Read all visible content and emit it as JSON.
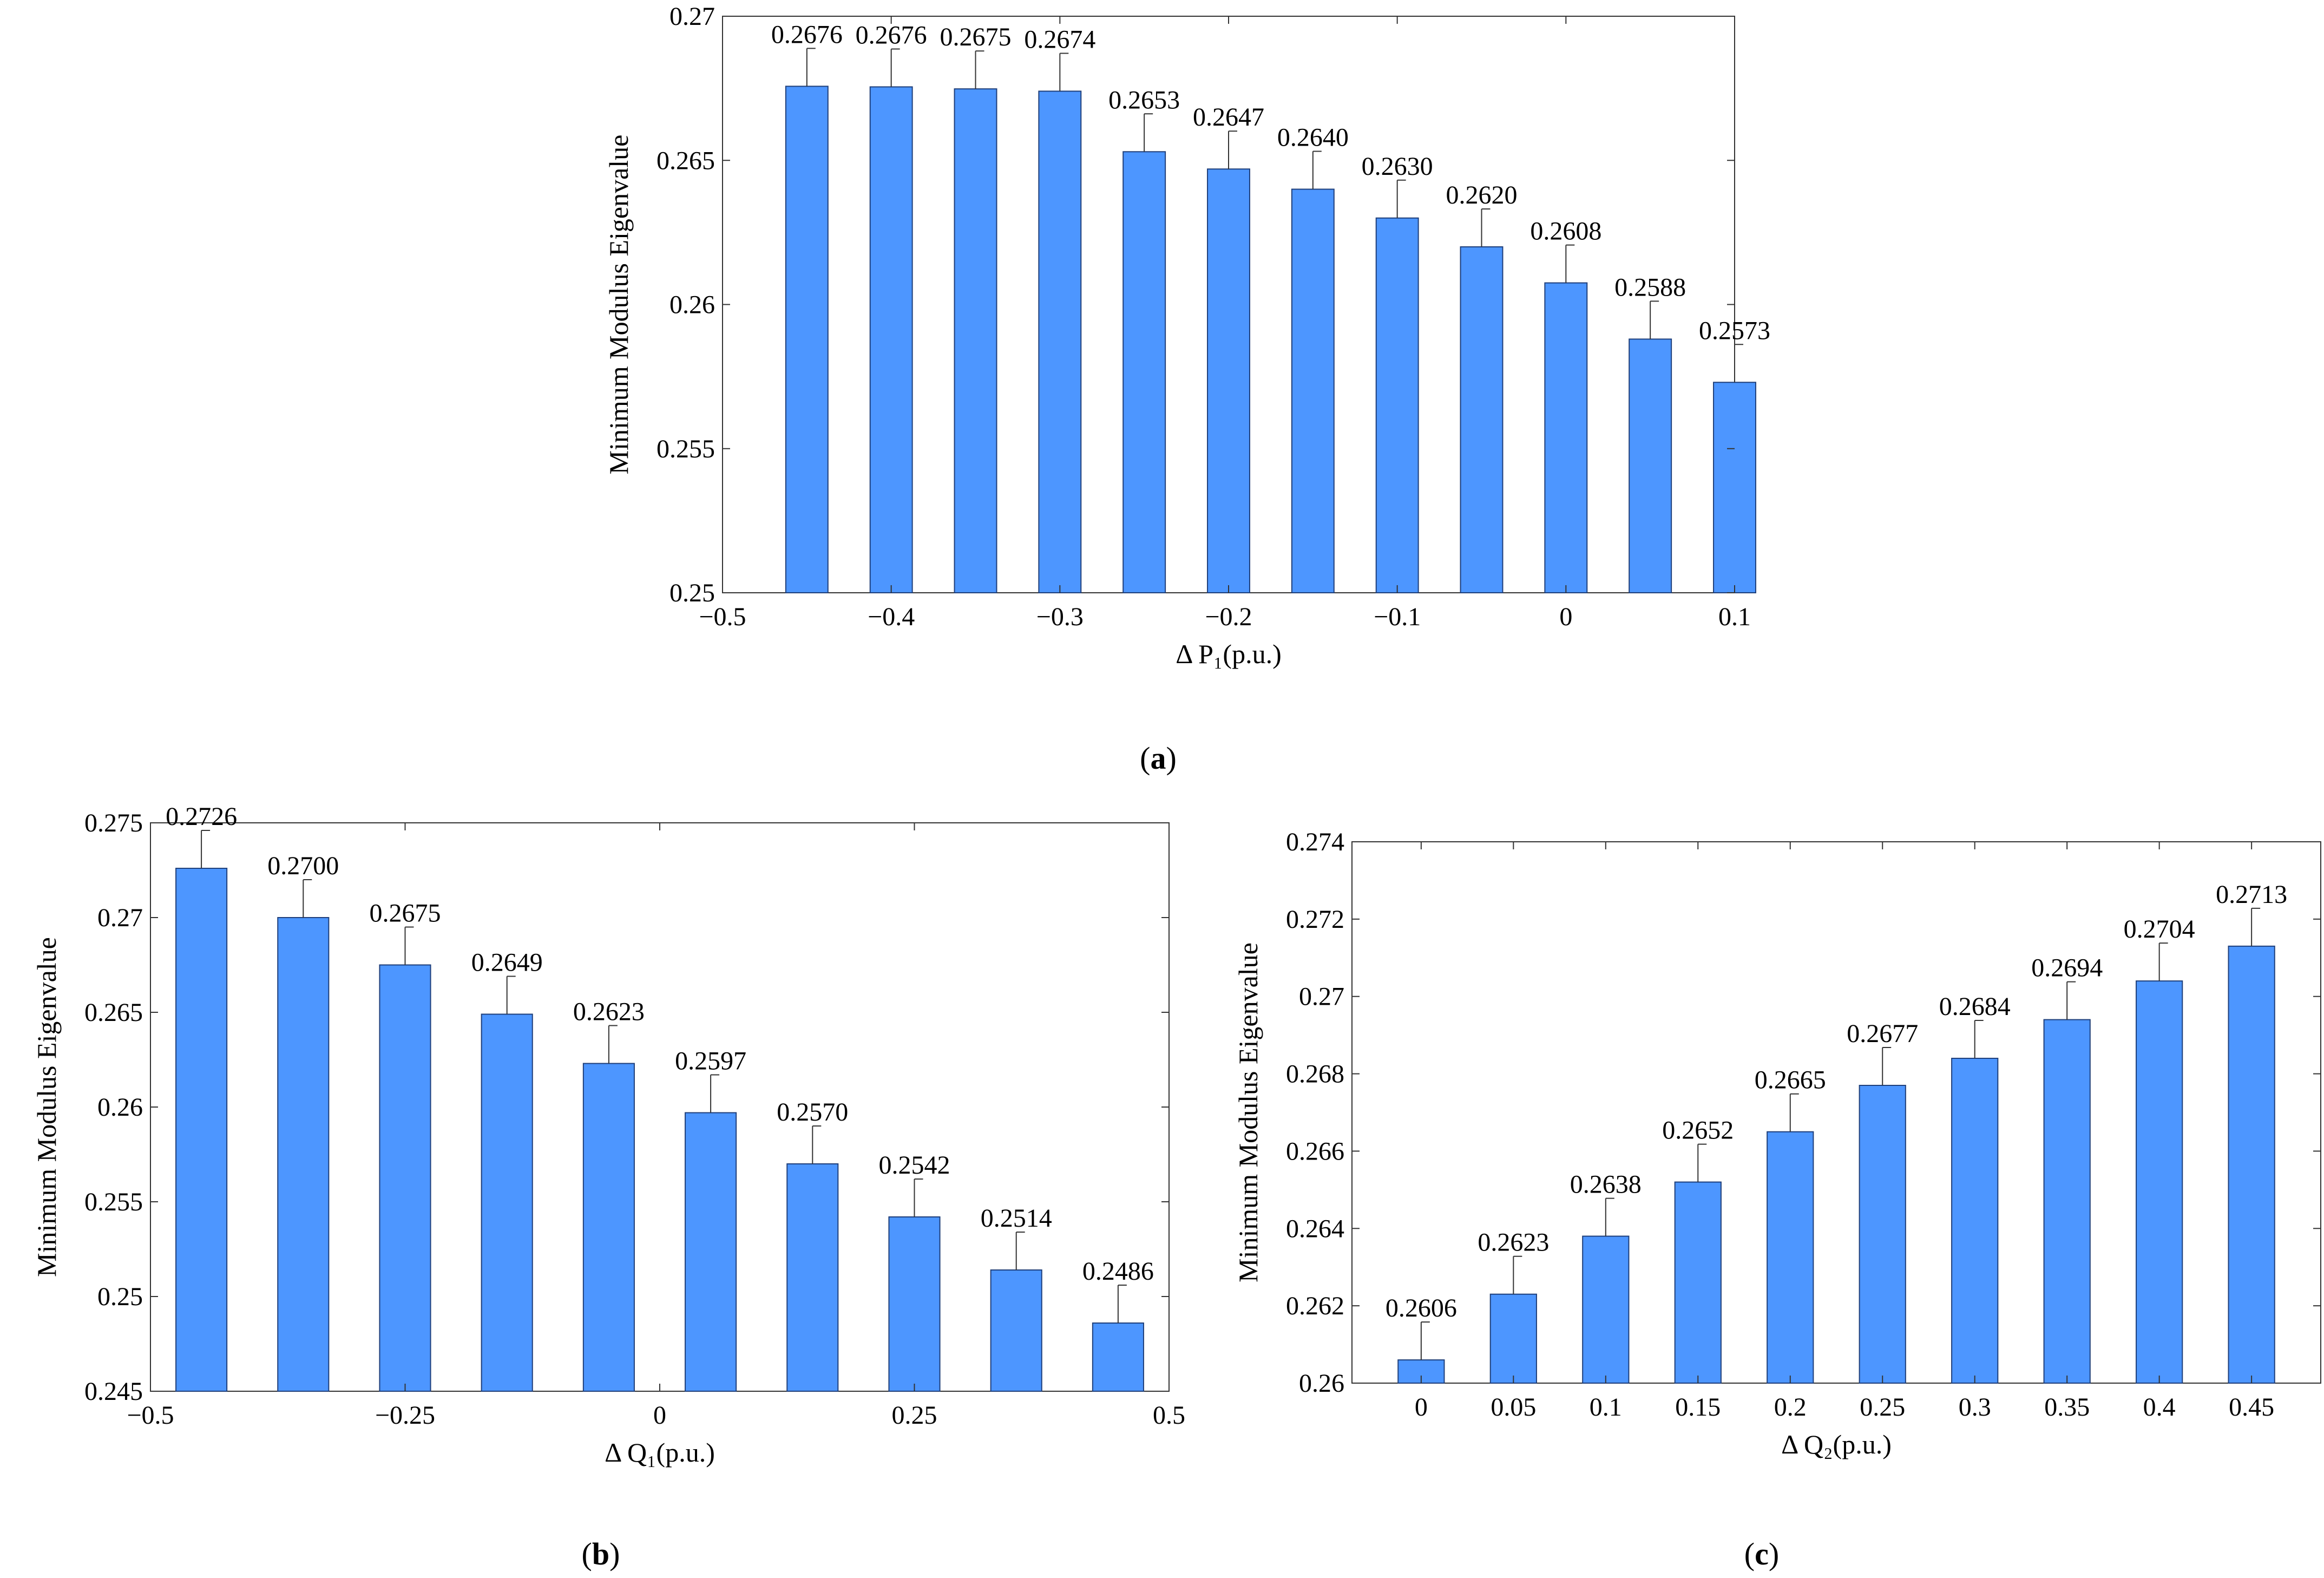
{
  "colors": {
    "bar_fill": "#4d96ff",
    "bar_stroke": "#1f3f7a",
    "axis": "#333333"
  },
  "chart_data": [
    {
      "id": "a",
      "type": "bar",
      "caption_letter": "a",
      "title": "",
      "xlabel": "Δ P₁(p.u.)",
      "ylabel": "Minimum Modulus Eigenvalue",
      "xlim": [
        -0.5,
        0.1
      ],
      "ylim": [
        0.25,
        0.27
      ],
      "x_ticks": [
        -0.5,
        -0.4,
        -0.3,
        -0.2,
        -0.1,
        0,
        0.1
      ],
      "x_tick_labels": [
        "−0.5",
        "−0.4",
        "−0.3",
        "−0.2",
        "−0.1",
        "0",
        "0.1"
      ],
      "y_ticks": [
        0.25,
        0.255,
        0.26,
        0.265,
        0.27
      ],
      "y_tick_labels": [
        "0.25",
        "0.255",
        "0.26",
        "0.265",
        "0.27"
      ],
      "x": [
        -0.45,
        -0.4,
        -0.35,
        -0.3,
        -0.25,
        -0.2,
        -0.15,
        -0.1,
        -0.05,
        0.0,
        0.05,
        0.1
      ],
      "values": [
        0.26757,
        0.26755,
        0.26748,
        0.2674,
        0.2653,
        0.2647,
        0.264,
        0.263,
        0.262,
        0.26075,
        0.2588,
        0.2573
      ],
      "value_labels": [
        "0.2676",
        "0.2676",
        "0.2675",
        "0.2674",
        "0.2653",
        "0.2647",
        "0.2640",
        "0.2630",
        "0.2620",
        "0.2608",
        "0.2588",
        "0.2573"
      ],
      "bar_width": 0.025,
      "grid": false
    },
    {
      "id": "b",
      "type": "bar",
      "caption_letter": "b",
      "title": "",
      "xlabel": "Δ Q₁(p.u.)",
      "ylabel": "Minimum Modulus Eigenvalue",
      "xlim": [
        -0.5,
        0.5
      ],
      "ylim": [
        0.245,
        0.275
      ],
      "x_ticks": [
        -0.5,
        -0.25,
        0,
        0.25,
        0.5
      ],
      "x_tick_labels": [
        "−0.5",
        "−0.25",
        "0",
        "0.25",
        "0.5"
      ],
      "y_ticks": [
        0.245,
        0.25,
        0.255,
        0.26,
        0.265,
        0.27,
        0.275
      ],
      "y_tick_labels": [
        "0.245",
        "0.25",
        "0.255",
        "0.26",
        "0.265",
        "0.27",
        "0.275"
      ],
      "x": [
        -0.45,
        -0.35,
        -0.25,
        -0.15,
        -0.05,
        0.05,
        0.15,
        0.25,
        0.35,
        0.45
      ],
      "values": [
        0.2726,
        0.27,
        0.2675,
        0.2649,
        0.2623,
        0.2597,
        0.257,
        0.2542,
        0.2514,
        0.2486
      ],
      "value_labels": [
        "0.2726",
        "0.2700",
        "0.2675",
        "0.2649",
        "0.2623",
        "0.2597",
        "0.2570",
        "0.2542",
        "0.2514",
        "0.2486"
      ],
      "bar_width": 0.05,
      "grid": false
    },
    {
      "id": "c",
      "type": "bar",
      "caption_letter": "c",
      "title": "",
      "xlabel": "Δ Q₂(p.u.)",
      "ylabel": "Minimum Modulus Eigenvalue",
      "xlim": [
        -0.0375,
        0.4875
      ],
      "ylim": [
        0.26,
        0.274
      ],
      "x_ticks": [
        0,
        0.05,
        0.1,
        0.15,
        0.2,
        0.25,
        0.3,
        0.35,
        0.4,
        0.45
      ],
      "x_tick_labels": [
        "0",
        "0.05",
        "0.1",
        "0.15",
        "0.2",
        "0.25",
        "0.3",
        "0.35",
        "0.4",
        "0.45"
      ],
      "y_ticks": [
        0.26,
        0.262,
        0.264,
        0.266,
        0.268,
        0.27,
        0.272,
        0.274
      ],
      "y_tick_labels": [
        "0.26",
        "0.262",
        "0.264",
        "0.266",
        "0.268",
        "0.27",
        "0.272",
        "0.274"
      ],
      "x": [
        0,
        0.05,
        0.1,
        0.15,
        0.2,
        0.25,
        0.3,
        0.35,
        0.4,
        0.45
      ],
      "values": [
        0.2606,
        0.2623,
        0.2638,
        0.2652,
        0.2665,
        0.2677,
        0.2684,
        0.2694,
        0.2704,
        0.2713
      ],
      "value_labels": [
        "0.2606",
        "0.2623",
        "0.2638",
        "0.2652",
        "0.2665",
        "0.2677",
        "0.2684",
        "0.2694",
        "0.2704",
        "0.2713"
      ],
      "bar_width": 0.025,
      "grid": false
    }
  ]
}
